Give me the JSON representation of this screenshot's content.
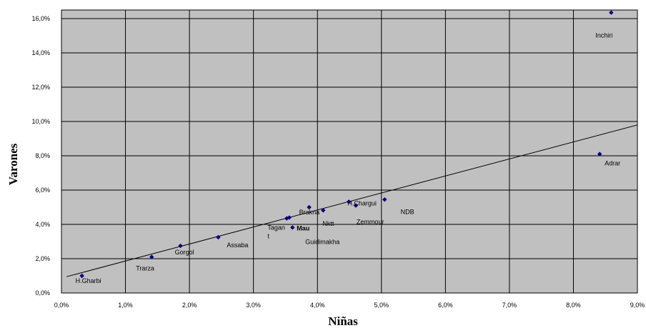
{
  "chart_data": {
    "type": "scatter",
    "title": "",
    "xlabel": "Niñas",
    "ylabel": "Varones",
    "xlim": [
      0.0,
      0.09
    ],
    "ylim": [
      0.0,
      0.165
    ],
    "x_ticks": [
      0.0,
      0.01,
      0.02,
      0.03,
      0.04,
      0.05,
      0.06,
      0.07,
      0.08,
      0.09
    ],
    "y_ticks": [
      0.0,
      0.02,
      0.04,
      0.06,
      0.08,
      0.1,
      0.12,
      0.14,
      0.16
    ],
    "x_tick_labels": [
      "0,0%",
      "1,0%",
      "2,0%",
      "3,0%",
      "4,0%",
      "5,0%",
      "6,0%",
      "7,0%",
      "8,0%",
      "9,0%"
    ],
    "y_tick_labels": [
      "0,0%",
      "2,0%",
      "4,0%",
      "6,0%",
      "8,0%",
      "10,0%",
      "12,0%",
      "14,0%",
      "16,0%"
    ],
    "grid": true,
    "background": "#c0c0c0",
    "marker_color": "#000080",
    "points": [
      {
        "label": "H.Gharbi",
        "x": 0.0032,
        "y": 0.01
      },
      {
        "label": "Trarza",
        "x": 0.0141,
        "y": 0.021
      },
      {
        "label": "Gorgol",
        "x": 0.0186,
        "y": 0.0275
      },
      {
        "label": "Assaba",
        "x": 0.0245,
        "y": 0.0325
      },
      {
        "label": "",
        "x": 0.0352,
        "y": 0.0435
      },
      {
        "label": "",
        "x": 0.0356,
        "y": 0.044
      },
      {
        "label": "Mau",
        "x": 0.0361,
        "y": 0.0382
      },
      {
        "label": "Brakna",
        "x": 0.0387,
        "y": 0.05
      },
      {
        "label": "",
        "x": 0.0409,
        "y": 0.0482
      },
      {
        "label": "",
        "x": 0.0449,
        "y": 0.0532
      },
      {
        "label": "",
        "x": 0.046,
        "y": 0.051
      },
      {
        "label": "",
        "x": 0.0505,
        "y": 0.0545
      },
      {
        "label": "Adrar",
        "x": 0.0841,
        "y": 0.081
      },
      {
        "label": "Inchiri",
        "x": 0.0859,
        "y": 0.1635
      }
    ],
    "free_labels": [
      {
        "text": "Tagan",
        "x": 0.0322,
        "y": 0.0368
      },
      {
        "text": "t",
        "x": 0.0322,
        "y": 0.0318
      },
      {
        "text": "Nktt",
        "x": 0.0408,
        "y": 0.0391
      },
      {
        "text": "H.Chargui",
        "x": 0.0447,
        "y": 0.0511
      },
      {
        "text": "Zemmour",
        "x": 0.0461,
        "y": 0.0402
      },
      {
        "text": "NDB",
        "x": 0.053,
        "y": 0.046
      },
      {
        "text": "Guidimakha",
        "x": 0.0381,
        "y": 0.0286
      }
    ],
    "trendline": {
      "x": [
        0.0008,
        0.09
      ],
      "y": [
        0.0095,
        0.098
      ]
    }
  }
}
